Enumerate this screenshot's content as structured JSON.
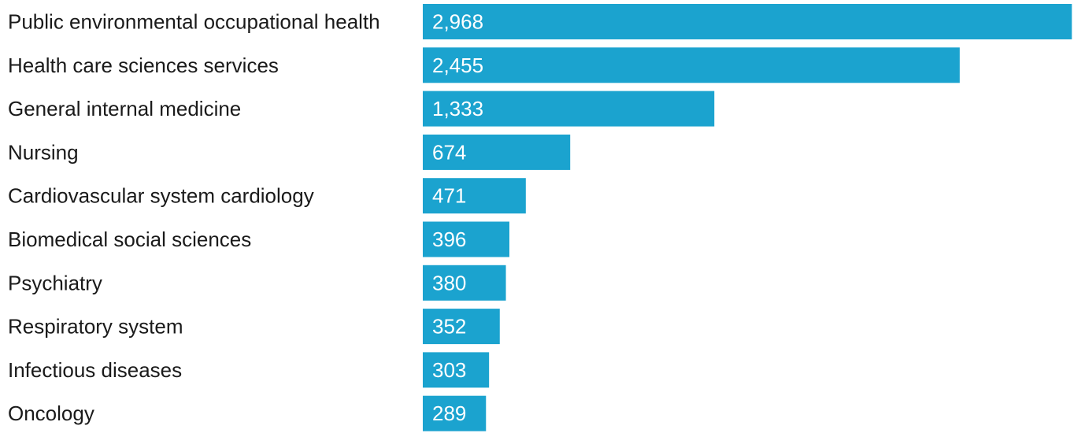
{
  "chart_data": {
    "type": "bar",
    "orientation": "horizontal",
    "categories": [
      "Public environmental occupational health",
      "Health care sciences services",
      "General internal medicine",
      "Nursing",
      "Cardiovascular system cardiology",
      "Biomedical social sciences",
      "Psychiatry",
      "Respiratory system",
      "Infectious diseases",
      "Oncology"
    ],
    "values": [
      2968,
      2455,
      1333,
      674,
      471,
      396,
      380,
      352,
      303,
      289
    ],
    "value_labels": [
      "2,968",
      "2,455",
      "1,333",
      "674",
      "471",
      "396",
      "380",
      "352",
      "303",
      "289"
    ],
    "title": "",
    "xlabel": "",
    "ylabel": "",
    "xlim": [
      0,
      3060
    ],
    "grid": false,
    "legend": "none",
    "colors": {
      "bar": "#1ba3cf",
      "category_text": "#1a1a1a",
      "value_text": "#ffffff"
    }
  }
}
